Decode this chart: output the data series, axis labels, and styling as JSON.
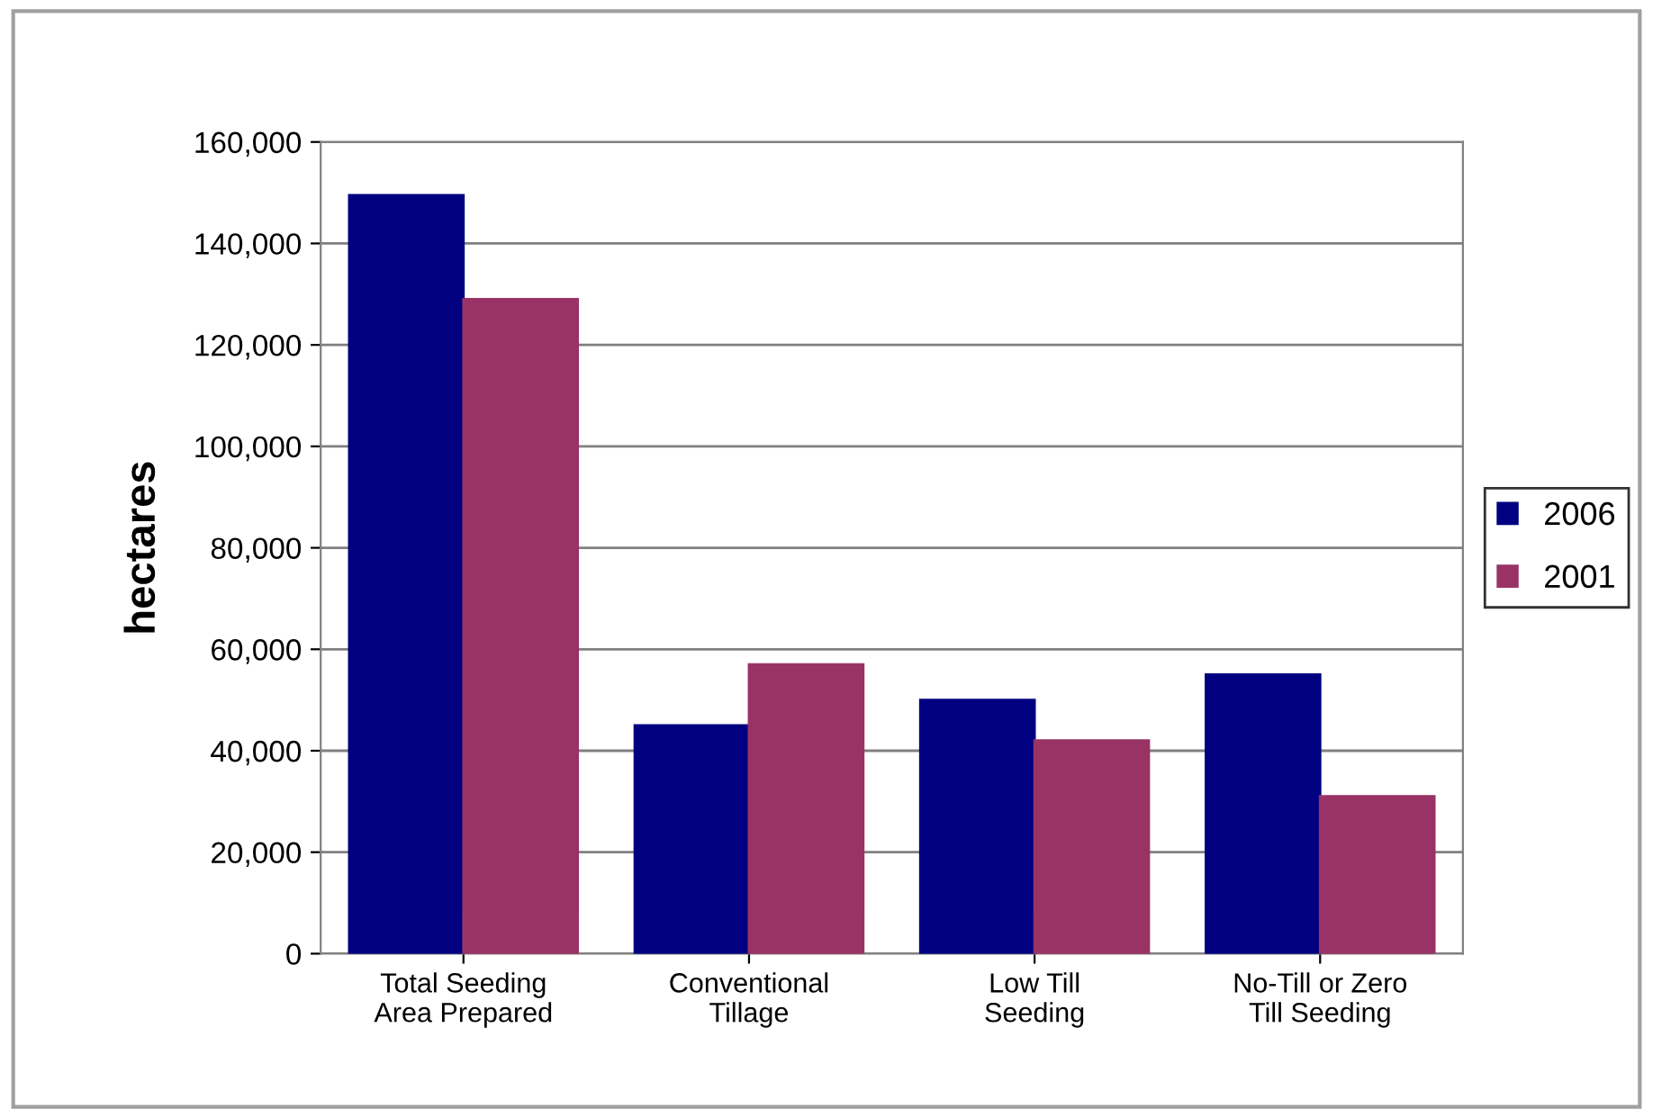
{
  "chart_data": {
    "type": "bar",
    "ylabel": "hectares",
    "categories": [
      "Total Seeding\nArea Prepared",
      "Conventional\nTillage",
      "Low Till\nSeeding",
      "No-Till or Zero\nTill Seeding"
    ],
    "series": [
      {
        "name": "2006",
        "color": "#000080",
        "values": [
          149500,
          45000,
          50000,
          55000
        ]
      },
      {
        "name": "2001",
        "color": "#993366",
        "values": [
          129000,
          57000,
          42000,
          31000
        ]
      }
    ],
    "ylim": [
      0,
      160000
    ],
    "yticks": [
      {
        "value": 0,
        "label": "0"
      },
      {
        "value": 20000,
        "label": "20,000"
      },
      {
        "value": 40000,
        "label": "40,000"
      },
      {
        "value": 60000,
        "label": "60,000"
      },
      {
        "value": 80000,
        "label": "80,000"
      },
      {
        "value": 100000,
        "label": "100,000"
      },
      {
        "value": 120000,
        "label": "120,000"
      },
      {
        "value": 140000,
        "label": "140,000"
      },
      {
        "value": 160000,
        "label": "160,000"
      }
    ],
    "grid": "y",
    "legend": "right"
  }
}
